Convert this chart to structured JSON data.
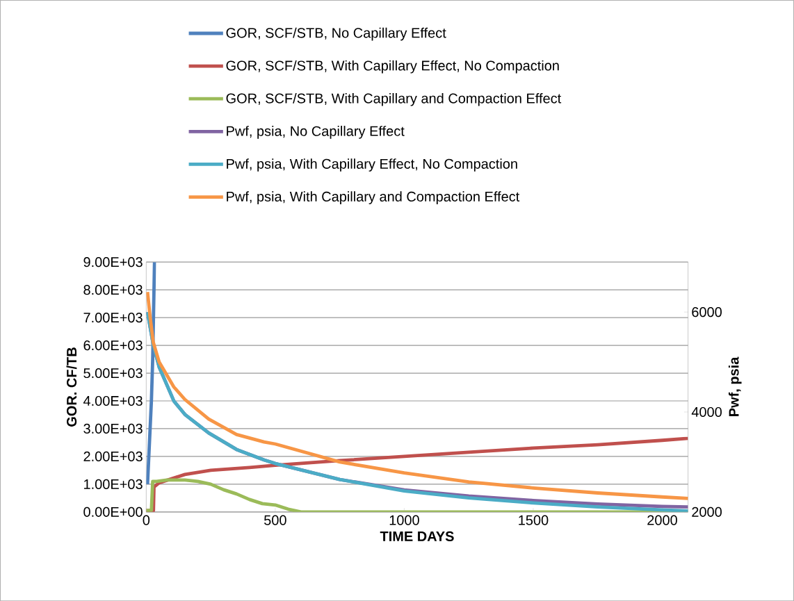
{
  "chart_data": {
    "type": "line",
    "xlabel": "TIME DAYS",
    "ylabel": "GOR. CF/TB",
    "y2label": "Pwf, psia",
    "xlim": [
      0,
      2100
    ],
    "xticks": [
      0,
      500,
      1000,
      1500,
      2000
    ],
    "ylim": [
      0,
      9000
    ],
    "yticks": [
      {
        "value": 0,
        "label": "0.00E+00"
      },
      {
        "value": 1000,
        "label": "1.00E+03"
      },
      {
        "value": 2000,
        "label": "2.00E+03"
      },
      {
        "value": 3000,
        "label": "3.00E+03"
      },
      {
        "value": 4000,
        "label": "4.00E+03"
      },
      {
        "value": 5000,
        "label": "5.00E+03"
      },
      {
        "value": 6000,
        "label": "6.00E+03"
      },
      {
        "value": 7000,
        "label": "7.00E+03"
      },
      {
        "value": 8000,
        "label": "8.00E+03"
      },
      {
        "value": 9000,
        "label": "9.00E+03"
      }
    ],
    "y2lim": [
      2000,
      7000
    ],
    "y2ticks": [
      2000,
      4000,
      6000
    ],
    "grid": "y",
    "legend": "top",
    "marker": "none",
    "series": [
      {
        "name": "GOR, SCF/STB, No Capillary Effect",
        "color": "#4f81bd",
        "x": [
          5,
          10,
          15,
          20,
          25,
          28,
          32
        ],
        "values": [
          1000,
          2000,
          3000,
          4000,
          5500,
          7000,
          9000
        ]
      },
      {
        "name": "GOR, SCF/STB, With Capillary Effect, No Compaction",
        "color": "#c0504d",
        "x": [
          0,
          28,
          30,
          50,
          100,
          150,
          250,
          400,
          500,
          750,
          1000,
          1250,
          1500,
          1750,
          2000,
          2100
        ],
        "values": [
          50,
          50,
          900,
          1050,
          1200,
          1350,
          1500,
          1600,
          1680,
          1850,
          2000,
          2150,
          2300,
          2420,
          2580,
          2650
        ]
      },
      {
        "name": "GOR, SCF/STB, With Capillary and Compaction Effect",
        "color": "#9bbb59",
        "x": [
          0,
          20,
          25,
          40,
          80,
          150,
          200,
          250,
          300,
          350,
          400,
          450,
          500,
          550,
          600,
          650,
          2100
        ],
        "values": [
          50,
          60,
          1100,
          1100,
          1150,
          1150,
          1100,
          1000,
          800,
          650,
          450,
          300,
          250,
          100,
          0,
          0,
          0
        ]
      },
      {
        "name": "Pwf, psia, No Capillary Effect",
        "color": "#8064a2",
        "axis": "y2",
        "x": [
          5,
          15,
          27,
          50,
          107,
          150,
          242,
          350,
          457,
          500,
          750,
          1000,
          1250,
          1500,
          1750,
          2000,
          2100
        ],
        "values": [
          6000,
          5700,
          5350,
          4900,
          4220,
          3950,
          3580,
          3250,
          3040,
          2970,
          2650,
          2440,
          2320,
          2230,
          2160,
          2110,
          2100
        ]
      },
      {
        "name": "Pwf, psia, With Capillary Effect, No Compaction",
        "color": "#4bacc6",
        "axis": "y2",
        "x": [
          5,
          15,
          27,
          50,
          107,
          150,
          242,
          350,
          457,
          500,
          750,
          1000,
          1250,
          1500,
          1750,
          2000,
          2100
        ],
        "values": [
          6000,
          5700,
          5350,
          4900,
          4220,
          3950,
          3580,
          3250,
          3040,
          2970,
          2650,
          2420,
          2280,
          2180,
          2100,
          2040,
          2020
        ]
      },
      {
        "name": "Pwf, psia, With Capillary and Compaction Effect",
        "color": "#f79646",
        "axis": "y2",
        "x": [
          5,
          15,
          27,
          50,
          107,
          150,
          242,
          350,
          457,
          500,
          750,
          1000,
          1250,
          1500,
          1750,
          2000,
          2100
        ],
        "values": [
          6400,
          5900,
          5400,
          5000,
          4500,
          4250,
          3860,
          3550,
          3400,
          3360,
          3000,
          2780,
          2600,
          2480,
          2380,
          2300,
          2270
        ]
      }
    ]
  }
}
